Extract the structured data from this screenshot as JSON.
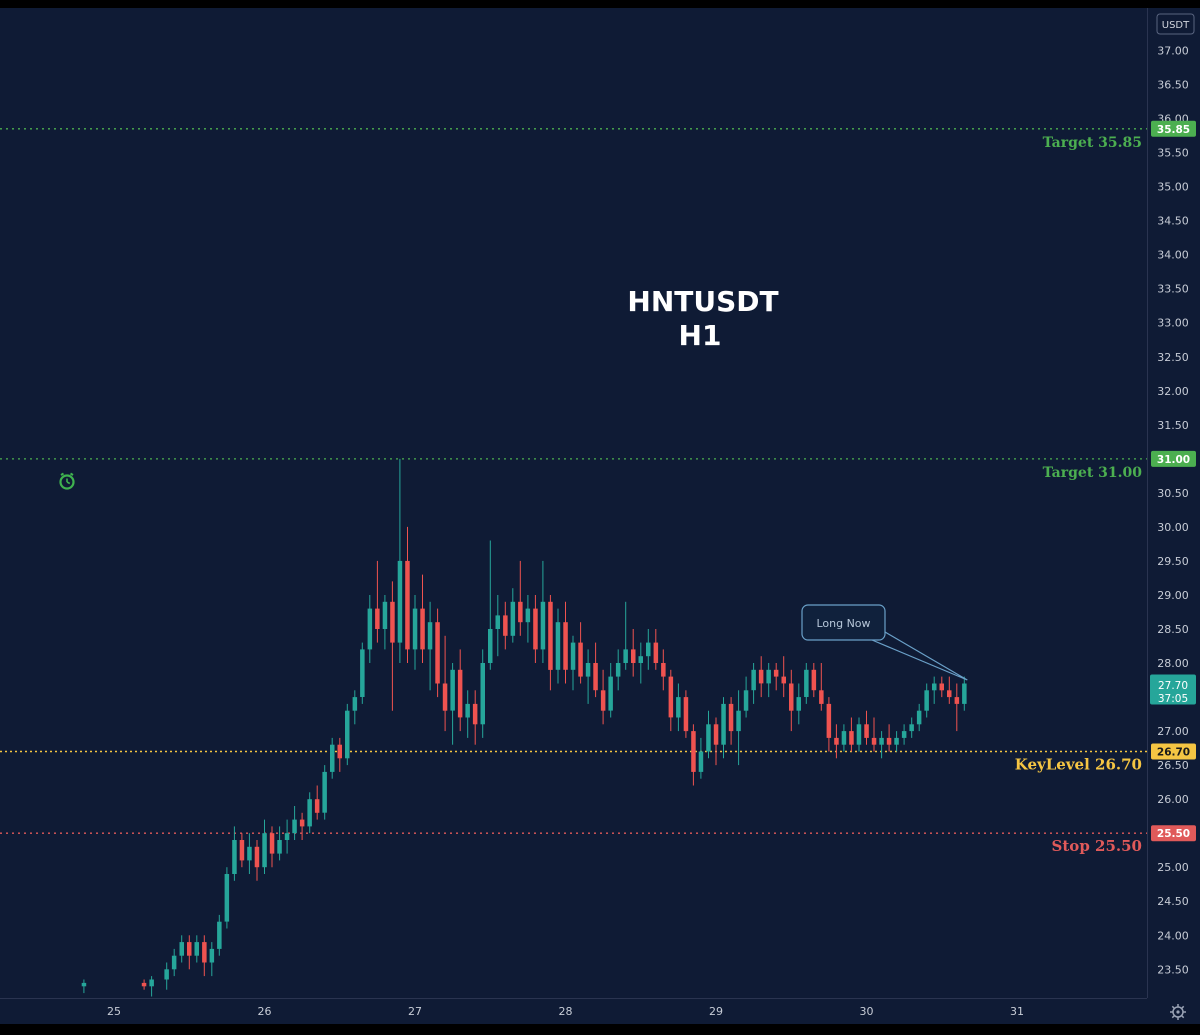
{
  "chart_data": {
    "type": "candlestick",
    "title": "HNTUSDT",
    "subtitle": "H1",
    "currency": "USDT",
    "ylim": [
      23.0,
      37.3
    ],
    "xlim": [
      24.6,
      31.5
    ],
    "y_ticks": [
      "23.50",
      "24.00",
      "24.50",
      "25.00",
      "25.50",
      "26.00",
      "26.50",
      "27.00",
      "27.50",
      "28.00",
      "28.50",
      "29.00",
      "29.50",
      "30.00",
      "30.50",
      "31.00",
      "31.50",
      "32.00",
      "32.50",
      "33.00",
      "33.50",
      "34.00",
      "34.50",
      "35.00",
      "35.50",
      "36.00",
      "36.50",
      "37.00"
    ],
    "x_ticks": [
      {
        "label": "25",
        "x": 25
      },
      {
        "label": "26",
        "x": 26
      },
      {
        "label": "27",
        "x": 27
      },
      {
        "label": "28",
        "x": 28
      },
      {
        "label": "29",
        "x": 29
      },
      {
        "label": "30",
        "x": 30
      },
      {
        "label": "31",
        "x": 31
      }
    ],
    "levels": [
      {
        "name": "target-2",
        "label": "Target 35.85",
        "badge": "35.85",
        "value": 35.85,
        "color": "#4caf50",
        "dash": "2,4"
      },
      {
        "name": "target-1",
        "label": "Target 31.00",
        "badge": "31.00",
        "value": 31.0,
        "color": "#4caf50",
        "dash": "2,4"
      },
      {
        "name": "key-level",
        "label": "KeyLevel 26.70",
        "badge": "26.70",
        "value": 26.7,
        "color": "#f5c543",
        "dash": "2,3"
      },
      {
        "name": "stop",
        "label": "Stop 25.50",
        "badge": "25.50",
        "value": 25.5,
        "color": "#e05a5a",
        "dash": "2,4"
      }
    ],
    "current_price": {
      "value": 27.7,
      "label": "27.70",
      "countdown": "37:05",
      "color": "#26a69a"
    },
    "annotation": {
      "text": "Long Now",
      "anchor_x": 30.67,
      "anchor_y": 27.75
    },
    "up_color": "#26a69a",
    "down_color": "#ef5350",
    "candles": [
      {
        "x": 24.8,
        "o": 23.25,
        "h": 23.35,
        "l": 23.15,
        "c": 23.3
      },
      {
        "x": 25.2,
        "o": 23.3,
        "h": 23.35,
        "l": 23.2,
        "c": 23.25
      },
      {
        "x": 25.25,
        "o": 23.25,
        "h": 23.4,
        "l": 23.1,
        "c": 23.35
      },
      {
        "x": 25.35,
        "o": 23.35,
        "h": 23.6,
        "l": 23.2,
        "c": 23.5
      },
      {
        "x": 25.4,
        "o": 23.5,
        "h": 23.8,
        "l": 23.4,
        "c": 23.7
      },
      {
        "x": 25.45,
        "o": 23.7,
        "h": 24.0,
        "l": 23.6,
        "c": 23.9
      },
      {
        "x": 25.5,
        "o": 23.9,
        "h": 24.0,
        "l": 23.5,
        "c": 23.7
      },
      {
        "x": 25.55,
        "o": 23.7,
        "h": 24.0,
        "l": 23.6,
        "c": 23.9
      },
      {
        "x": 25.6,
        "o": 23.9,
        "h": 24.0,
        "l": 23.4,
        "c": 23.6
      },
      {
        "x": 25.65,
        "o": 23.6,
        "h": 23.9,
        "l": 23.4,
        "c": 23.8
      },
      {
        "x": 25.7,
        "o": 23.8,
        "h": 24.3,
        "l": 23.7,
        "c": 24.2
      },
      {
        "x": 25.75,
        "o": 24.2,
        "h": 25.0,
        "l": 24.1,
        "c": 24.9
      },
      {
        "x": 25.8,
        "o": 24.9,
        "h": 25.6,
        "l": 24.8,
        "c": 25.4
      },
      {
        "x": 25.85,
        "o": 25.4,
        "h": 25.5,
        "l": 25.0,
        "c": 25.1
      },
      {
        "x": 25.9,
        "o": 25.1,
        "h": 25.5,
        "l": 24.9,
        "c": 25.3
      },
      {
        "x": 25.95,
        "o": 25.3,
        "h": 25.4,
        "l": 24.8,
        "c": 25.0
      },
      {
        "x": 26.0,
        "o": 25.0,
        "h": 25.7,
        "l": 24.9,
        "c": 25.5
      },
      {
        "x": 26.05,
        "o": 25.5,
        "h": 25.6,
        "l": 25.0,
        "c": 25.2
      },
      {
        "x": 26.1,
        "o": 25.2,
        "h": 25.6,
        "l": 25.1,
        "c": 25.4
      },
      {
        "x": 26.15,
        "o": 25.4,
        "h": 25.7,
        "l": 25.2,
        "c": 25.5
      },
      {
        "x": 26.2,
        "o": 25.5,
        "h": 25.9,
        "l": 25.4,
        "c": 25.7
      },
      {
        "x": 26.25,
        "o": 25.7,
        "h": 25.8,
        "l": 25.4,
        "c": 25.6
      },
      {
        "x": 26.3,
        "o": 25.6,
        "h": 26.1,
        "l": 25.5,
        "c": 26.0
      },
      {
        "x": 26.35,
        "o": 26.0,
        "h": 26.2,
        "l": 25.7,
        "c": 25.8
      },
      {
        "x": 26.4,
        "o": 25.8,
        "h": 26.5,
        "l": 25.7,
        "c": 26.4
      },
      {
        "x": 26.45,
        "o": 26.4,
        "h": 26.9,
        "l": 26.3,
        "c": 26.8
      },
      {
        "x": 26.5,
        "o": 26.8,
        "h": 26.9,
        "l": 26.4,
        "c": 26.6
      },
      {
        "x": 26.55,
        "o": 26.6,
        "h": 27.4,
        "l": 26.5,
        "c": 27.3
      },
      {
        "x": 26.6,
        "o": 27.3,
        "h": 27.6,
        "l": 27.1,
        "c": 27.5
      },
      {
        "x": 26.65,
        "o": 27.5,
        "h": 28.3,
        "l": 27.4,
        "c": 28.2
      },
      {
        "x": 26.7,
        "o": 28.2,
        "h": 29.0,
        "l": 28.0,
        "c": 28.8
      },
      {
        "x": 26.75,
        "o": 28.8,
        "h": 29.5,
        "l": 28.3,
        "c": 28.5
      },
      {
        "x": 26.8,
        "o": 28.5,
        "h": 29.0,
        "l": 28.2,
        "c": 28.9
      },
      {
        "x": 26.85,
        "o": 28.9,
        "h": 29.2,
        "l": 27.3,
        "c": 28.3
      },
      {
        "x": 26.9,
        "o": 28.3,
        "h": 31.0,
        "l": 28.0,
        "c": 29.5
      },
      {
        "x": 26.95,
        "o": 29.5,
        "h": 30.0,
        "l": 28.0,
        "c": 28.2
      },
      {
        "x": 27.0,
        "o": 28.2,
        "h": 29.0,
        "l": 27.9,
        "c": 28.8
      },
      {
        "x": 27.05,
        "o": 28.8,
        "h": 29.3,
        "l": 28.0,
        "c": 28.2
      },
      {
        "x": 27.1,
        "o": 28.2,
        "h": 28.9,
        "l": 27.6,
        "c": 28.6
      },
      {
        "x": 27.15,
        "o": 28.6,
        "h": 28.8,
        "l": 27.5,
        "c": 27.7
      },
      {
        "x": 27.2,
        "o": 27.7,
        "h": 28.4,
        "l": 27.0,
        "c": 27.3
      },
      {
        "x": 27.25,
        "o": 27.3,
        "h": 28.0,
        "l": 26.8,
        "c": 27.9
      },
      {
        "x": 27.3,
        "o": 27.9,
        "h": 28.2,
        "l": 27.0,
        "c": 27.2
      },
      {
        "x": 27.35,
        "o": 27.2,
        "h": 27.6,
        "l": 26.9,
        "c": 27.4
      },
      {
        "x": 27.4,
        "o": 27.4,
        "h": 27.6,
        "l": 26.8,
        "c": 27.1
      },
      {
        "x": 27.45,
        "o": 27.1,
        "h": 28.2,
        "l": 26.9,
        "c": 28.0
      },
      {
        "x": 27.5,
        "o": 28.0,
        "h": 29.8,
        "l": 27.9,
        "c": 28.5
      },
      {
        "x": 27.55,
        "o": 28.5,
        "h": 29.0,
        "l": 28.1,
        "c": 28.7
      },
      {
        "x": 27.6,
        "o": 28.7,
        "h": 28.9,
        "l": 28.2,
        "c": 28.4
      },
      {
        "x": 27.65,
        "o": 28.4,
        "h": 29.1,
        "l": 28.3,
        "c": 28.9
      },
      {
        "x": 27.7,
        "o": 28.9,
        "h": 29.5,
        "l": 28.4,
        "c": 28.6
      },
      {
        "x": 27.75,
        "o": 28.6,
        "h": 29.0,
        "l": 28.3,
        "c": 28.8
      },
      {
        "x": 27.8,
        "o": 28.8,
        "h": 29.0,
        "l": 28.0,
        "c": 28.2
      },
      {
        "x": 27.85,
        "o": 28.2,
        "h": 29.5,
        "l": 28.0,
        "c": 28.9
      },
      {
        "x": 27.9,
        "o": 28.9,
        "h": 29.0,
        "l": 27.6,
        "c": 27.9
      },
      {
        "x": 27.95,
        "o": 27.9,
        "h": 28.8,
        "l": 27.7,
        "c": 28.6
      },
      {
        "x": 28.0,
        "o": 28.6,
        "h": 28.9,
        "l": 27.7,
        "c": 27.9
      },
      {
        "x": 28.05,
        "o": 27.9,
        "h": 28.4,
        "l": 27.6,
        "c": 28.3
      },
      {
        "x": 28.1,
        "o": 28.3,
        "h": 28.6,
        "l": 27.7,
        "c": 27.8
      },
      {
        "x": 28.15,
        "o": 27.8,
        "h": 28.2,
        "l": 27.4,
        "c": 28.0
      },
      {
        "x": 28.2,
        "o": 28.0,
        "h": 28.3,
        "l": 27.5,
        "c": 27.6
      },
      {
        "x": 28.25,
        "o": 27.6,
        "h": 27.9,
        "l": 27.1,
        "c": 27.3
      },
      {
        "x": 28.3,
        "o": 27.3,
        "h": 28.0,
        "l": 27.2,
        "c": 27.8
      },
      {
        "x": 28.35,
        "o": 27.8,
        "h": 28.2,
        "l": 27.6,
        "c": 28.0
      },
      {
        "x": 28.4,
        "o": 28.0,
        "h": 28.9,
        "l": 27.9,
        "c": 28.2
      },
      {
        "x": 28.45,
        "o": 28.2,
        "h": 28.5,
        "l": 27.8,
        "c": 28.0
      },
      {
        "x": 28.5,
        "o": 28.0,
        "h": 28.3,
        "l": 27.7,
        "c": 28.1
      },
      {
        "x": 28.55,
        "o": 28.1,
        "h": 28.5,
        "l": 27.9,
        "c": 28.3
      },
      {
        "x": 28.6,
        "o": 28.3,
        "h": 28.5,
        "l": 27.9,
        "c": 28.0
      },
      {
        "x": 28.65,
        "o": 28.0,
        "h": 28.2,
        "l": 27.6,
        "c": 27.8
      },
      {
        "x": 28.7,
        "o": 27.8,
        "h": 27.9,
        "l": 27.0,
        "c": 27.2
      },
      {
        "x": 28.75,
        "o": 27.2,
        "h": 27.7,
        "l": 27.0,
        "c": 27.5
      },
      {
        "x": 28.8,
        "o": 27.5,
        "h": 27.6,
        "l": 26.9,
        "c": 27.0
      },
      {
        "x": 28.85,
        "o": 27.0,
        "h": 27.1,
        "l": 26.2,
        "c": 26.4
      },
      {
        "x": 28.9,
        "o": 26.4,
        "h": 26.9,
        "l": 26.3,
        "c": 26.7
      },
      {
        "x": 28.95,
        "o": 26.7,
        "h": 27.3,
        "l": 26.6,
        "c": 27.1
      },
      {
        "x": 29.0,
        "o": 27.1,
        "h": 27.2,
        "l": 26.5,
        "c": 26.8
      },
      {
        "x": 29.05,
        "o": 26.8,
        "h": 27.5,
        "l": 26.6,
        "c": 27.4
      },
      {
        "x": 29.1,
        "o": 27.4,
        "h": 27.5,
        "l": 26.8,
        "c": 27.0
      },
      {
        "x": 29.15,
        "o": 27.0,
        "h": 27.6,
        "l": 26.5,
        "c": 27.3
      },
      {
        "x": 29.2,
        "o": 27.3,
        "h": 27.8,
        "l": 27.2,
        "c": 27.6
      },
      {
        "x": 29.25,
        "o": 27.6,
        "h": 28.0,
        "l": 27.4,
        "c": 27.9
      },
      {
        "x": 29.3,
        "o": 27.9,
        "h": 28.1,
        "l": 27.5,
        "c": 27.7
      },
      {
        "x": 29.35,
        "o": 27.7,
        "h": 28.0,
        "l": 27.5,
        "c": 27.9
      },
      {
        "x": 29.4,
        "o": 27.9,
        "h": 28.0,
        "l": 27.6,
        "c": 27.8
      },
      {
        "x": 29.45,
        "o": 27.8,
        "h": 28.1,
        "l": 27.5,
        "c": 27.7
      },
      {
        "x": 29.5,
        "o": 27.7,
        "h": 27.9,
        "l": 27.0,
        "c": 27.3
      },
      {
        "x": 29.55,
        "o": 27.3,
        "h": 27.7,
        "l": 27.1,
        "c": 27.5
      },
      {
        "x": 29.6,
        "o": 27.5,
        "h": 28.0,
        "l": 27.4,
        "c": 27.9
      },
      {
        "x": 29.65,
        "o": 27.9,
        "h": 28.0,
        "l": 27.5,
        "c": 27.6
      },
      {
        "x": 29.7,
        "o": 27.6,
        "h": 28.0,
        "l": 27.3,
        "c": 27.4
      },
      {
        "x": 29.75,
        "o": 27.4,
        "h": 27.5,
        "l": 26.7,
        "c": 26.9
      },
      {
        "x": 29.8,
        "o": 26.9,
        "h": 27.1,
        "l": 26.6,
        "c": 26.8
      },
      {
        "x": 29.85,
        "o": 26.8,
        "h": 27.1,
        "l": 26.7,
        "c": 27.0
      },
      {
        "x": 29.9,
        "o": 27.0,
        "h": 27.2,
        "l": 26.7,
        "c": 26.8
      },
      {
        "x": 29.95,
        "o": 26.8,
        "h": 27.2,
        "l": 26.7,
        "c": 27.1
      },
      {
        "x": 30.0,
        "o": 27.1,
        "h": 27.3,
        "l": 26.8,
        "c": 26.9
      },
      {
        "x": 30.05,
        "o": 26.9,
        "h": 27.2,
        "l": 26.7,
        "c": 26.8
      },
      {
        "x": 30.1,
        "o": 26.8,
        "h": 27.0,
        "l": 26.6,
        "c": 26.9
      },
      {
        "x": 30.15,
        "o": 26.9,
        "h": 27.1,
        "l": 26.7,
        "c": 26.8
      },
      {
        "x": 30.2,
        "o": 26.8,
        "h": 27.0,
        "l": 26.7,
        "c": 26.9
      },
      {
        "x": 30.25,
        "o": 26.9,
        "h": 27.1,
        "l": 26.8,
        "c": 27.0
      },
      {
        "x": 30.3,
        "o": 27.0,
        "h": 27.2,
        "l": 26.9,
        "c": 27.1
      },
      {
        "x": 30.35,
        "o": 27.1,
        "h": 27.4,
        "l": 27.0,
        "c": 27.3
      },
      {
        "x": 30.4,
        "o": 27.3,
        "h": 27.7,
        "l": 27.2,
        "c": 27.6
      },
      {
        "x": 30.45,
        "o": 27.6,
        "h": 27.8,
        "l": 27.4,
        "c": 27.7
      },
      {
        "x": 30.5,
        "o": 27.7,
        "h": 27.8,
        "l": 27.5,
        "c": 27.6
      },
      {
        "x": 30.55,
        "o": 27.6,
        "h": 27.8,
        "l": 27.4,
        "c": 27.5
      },
      {
        "x": 30.6,
        "o": 27.5,
        "h": 27.7,
        "l": 27.0,
        "c": 27.4
      },
      {
        "x": 30.65,
        "o": 27.4,
        "h": 27.8,
        "l": 27.3,
        "c": 27.7
      }
    ]
  }
}
